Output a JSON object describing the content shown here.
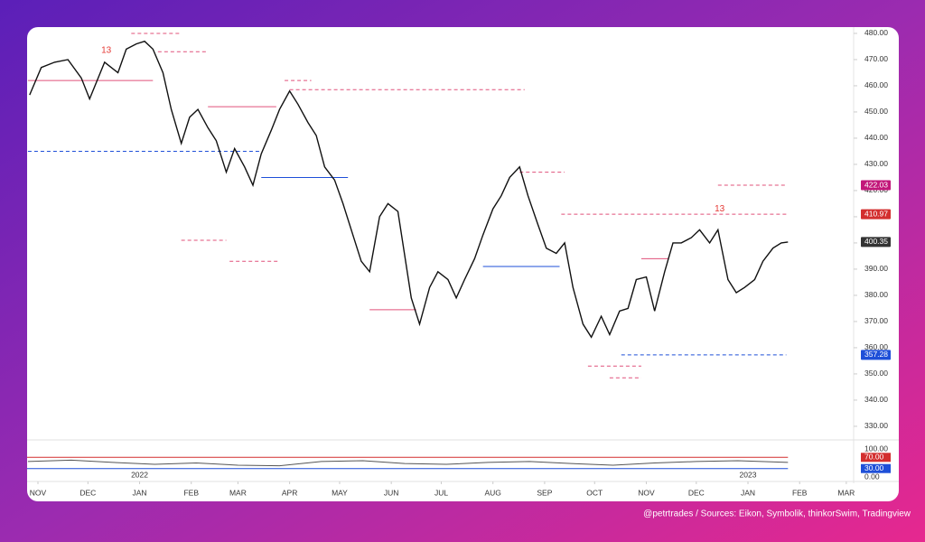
{
  "chart_data": {
    "type": "line",
    "color": "#111111",
    "x": [
      -5,
      2,
      10,
      18,
      26,
      31,
      40,
      48,
      53,
      59,
      64,
      69,
      75,
      80,
      86,
      91,
      96,
      102,
      107,
      113,
      118,
      124,
      129,
      134,
      140,
      145,
      151,
      156,
      162,
      167,
      172,
      178,
      183,
      189,
      194,
      199,
      205,
      210,
      216,
      224,
      229,
      235,
      240,
      246,
      251,
      256,
      262,
      267,
      273,
      278,
      283,
      289,
      294,
      300,
      305,
      311,
      316,
      321,
      327,
      332,
      338,
      343,
      349,
      354,
      359,
      365,
      370,
      376,
      381,
      386,
      392,
      397,
      403,
      408,
      414,
      419,
      424,
      430,
      435,
      441,
      446,
      450
    ],
    "values": [
      456.5,
      467,
      469,
      470,
      463,
      455,
      469,
      465,
      474,
      476,
      477,
      474,
      465,
      451,
      438,
      448,
      451,
      444,
      439,
      427,
      436,
      429,
      422,
      434,
      443,
      451,
      458,
      453,
      446,
      441,
      429,
      424,
      415,
      403,
      393,
      389,
      410,
      415,
      412,
      379,
      369,
      383,
      389,
      386,
      379,
      386,
      394,
      403,
      413,
      418,
      425,
      429,
      418,
      407,
      398,
      396,
      400,
      383,
      369,
      364,
      372,
      365,
      374,
      375,
      386,
      387,
      374,
      389,
      400,
      400,
      402,
      405,
      400,
      405,
      386,
      381,
      383,
      386,
      393,
      398,
      400,
      400.35
    ],
    "xlim": [
      -6.5,
      489.4
    ],
    "xticks": [
      {
        "value": 0,
        "label": "NOV"
      },
      {
        "value": 30,
        "label": "DEC"
      },
      {
        "value": 61,
        "label": "JAN"
      },
      {
        "value": 92,
        "label": "FEB"
      },
      {
        "value": 120,
        "label": "MAR"
      },
      {
        "value": 151,
        "label": "APR"
      },
      {
        "value": 181,
        "label": "MAY"
      },
      {
        "value": 212,
        "label": "JUN"
      },
      {
        "value": 242,
        "label": "JUL"
      },
      {
        "value": 273,
        "label": "AUG"
      },
      {
        "value": 304,
        "label": "SEP"
      },
      {
        "value": 334,
        "label": "OCT"
      },
      {
        "value": 365,
        "label": "NOV"
      },
      {
        "value": 395,
        "label": "DEC"
      },
      {
        "value": 426,
        "label": "JAN"
      },
      {
        "value": 457,
        "label": "FEB"
      },
      {
        "value": 485,
        "label": "MAR"
      }
    ],
    "years": [
      {
        "value": 61,
        "label": "2022"
      },
      {
        "value": 426,
        "label": "2023"
      }
    ],
    "ylim": [
      324.8,
      482.4
    ],
    "yticks": [
      {
        "value": 330,
        "label": "330.00"
      },
      {
        "value": 340,
        "label": "340.00"
      },
      {
        "value": 350,
        "label": "350.00"
      },
      {
        "value": 360,
        "label": "360.00"
      },
      {
        "value": 370,
        "label": "370.00"
      },
      {
        "value": 380,
        "label": "380.00"
      },
      {
        "value": 390,
        "label": "390.00"
      },
      {
        "value": 400,
        "label": "400.00"
      },
      {
        "value": 410,
        "label": "410.00"
      },
      {
        "value": 420,
        "label": "420.00"
      },
      {
        "value": 430,
        "label": "430.00"
      },
      {
        "value": 440,
        "label": "440.00"
      },
      {
        "value": 450,
        "label": "450.00"
      },
      {
        "value": 460,
        "label": "460.00"
      },
      {
        "value": 470,
        "label": "470.00"
      },
      {
        "value": 480,
        "label": "480.00"
      }
    ],
    "price_labels": [
      {
        "value": 422.03,
        "color": "#c2187a"
      },
      {
        "value": 410.97,
        "color": "#d32f2f"
      },
      {
        "value": 400.35,
        "color": "#333333"
      },
      {
        "value": 357.28,
        "color": "#1e4fd8"
      }
    ],
    "levels": [
      {
        "value": 422.03,
        "x": [
          408,
          449
        ],
        "color": "#e0507a",
        "dash": true
      },
      {
        "value": 410.97,
        "x": [
          314,
          449
        ],
        "color": "#e0507a",
        "dash": true
      },
      {
        "value": 357.28,
        "x": [
          350,
          449
        ],
        "color": "#1e4fd8",
        "dash": true
      },
      {
        "value": 435,
        "x": [
          -6,
          134
        ],
        "color": "#1e4fd8",
        "dash": true
      },
      {
        "value": 425,
        "x": [
          134,
          186
        ],
        "color": "#1e4fd8",
        "dash": false
      },
      {
        "value": 391,
        "x": [
          267,
          313
        ],
        "color": "#1e4fd8",
        "dash": false
      },
      {
        "value": 462,
        "x": [
          -6,
          69
        ],
        "color": "#e0507a",
        "dash": false
      },
      {
        "value": 480,
        "x": [
          56,
          86
        ],
        "color": "#e0507a",
        "dash": true
      },
      {
        "value": 473,
        "x": [
          72,
          102
        ],
        "color": "#e0507a",
        "dash": true
      },
      {
        "value": 458.5,
        "x": [
          151,
          292
        ],
        "color": "#e0507a",
        "dash": true
      },
      {
        "value": 452,
        "x": [
          102,
          143
        ],
        "color": "#e0507a",
        "dash": false
      },
      {
        "value": 462,
        "x": [
          148,
          164
        ],
        "color": "#e0507a",
        "dash": true
      },
      {
        "value": 374.5,
        "x": [
          199,
          227
        ],
        "color": "#e0507a",
        "dash": false
      },
      {
        "value": 401,
        "x": [
          86,
          113
        ],
        "color": "#e0507a",
        "dash": true
      },
      {
        "value": 393,
        "x": [
          115,
          145
        ],
        "color": "#e0507a",
        "dash": true
      },
      {
        "value": 394,
        "x": [
          362,
          378
        ],
        "color": "#e0507a",
        "dash": false
      },
      {
        "value": 427,
        "x": [
          289,
          316
        ],
        "color": "#e0507a",
        "dash": true
      },
      {
        "value": 353,
        "x": [
          330,
          362
        ],
        "color": "#e0507a",
        "dash": true
      },
      {
        "value": 348.5,
        "x": [
          343,
          362
        ],
        "color": "#e0507a",
        "dash": true
      }
    ],
    "annotations": [
      {
        "text": "13",
        "x": 41,
        "y": 473.5
      },
      {
        "text": "13",
        "x": 409,
        "y": 413
      }
    ],
    "rsi": {
      "x": [
        -6,
        20,
        45,
        70,
        95,
        120,
        145,
        170,
        195,
        220,
        245,
        270,
        295,
        320,
        345,
        370,
        395,
        420,
        450
      ],
      "values": [
        55,
        60,
        52,
        45,
        50,
        42,
        40,
        55,
        58,
        48,
        45,
        52,
        55,
        48,
        42,
        50,
        55,
        58,
        52
      ],
      "ylim": [
        0,
        100
      ],
      "yticks": [
        {
          "value": 100,
          "label": "100.00"
        },
        {
          "value": 0,
          "label": "0.00"
        }
      ],
      "bands": [
        {
          "value": 70,
          "label": "70.00",
          "color": "#d32f2f"
        },
        {
          "value": 30,
          "label": "30.00",
          "color": "#1e4fd8"
        }
      ]
    }
  },
  "footer": "@petrtrades / Sources: Eikon, Symbolik, thinkorSwim, Tradingview"
}
